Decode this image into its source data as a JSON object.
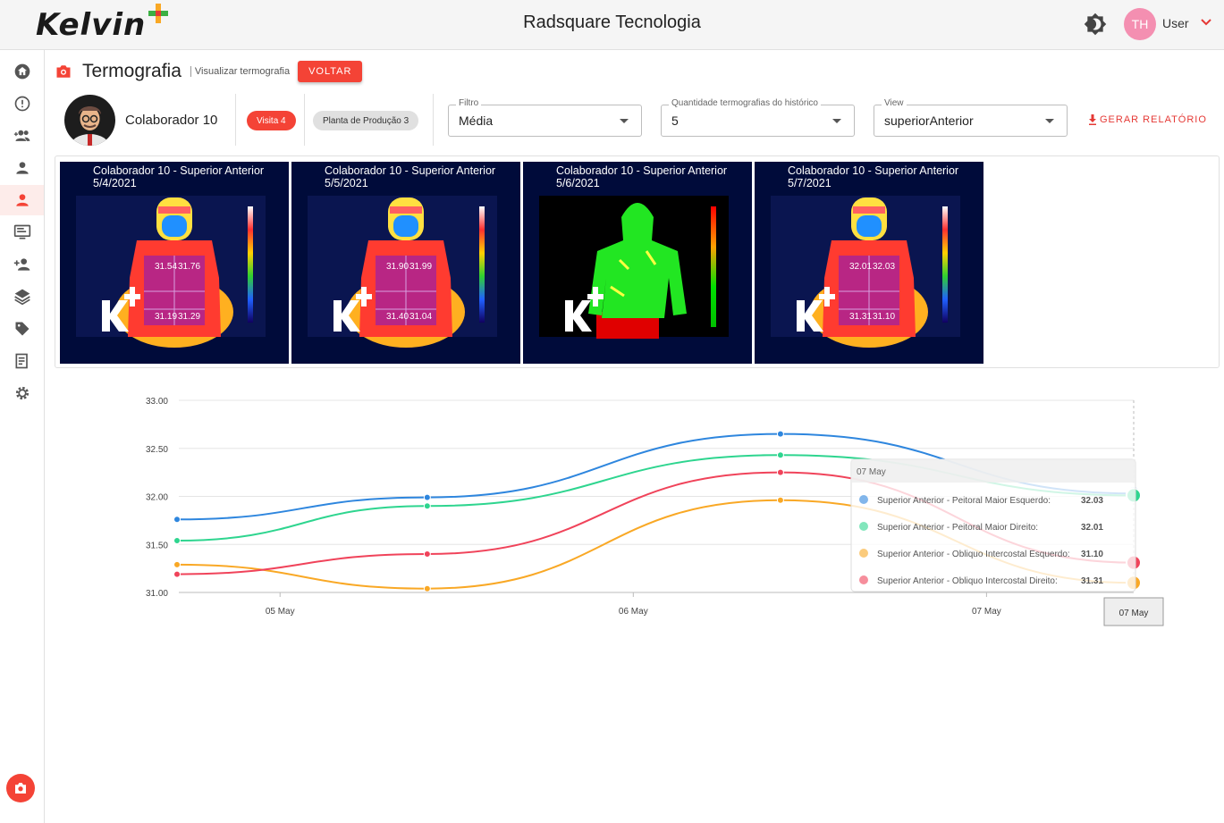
{
  "header": {
    "logo": "Kelvin+",
    "app_title": "Radsquare Tecnologia",
    "avatar_initials": "TH",
    "user_name": "User"
  },
  "sidebar": {
    "items": [
      {
        "icon": "home-icon"
      },
      {
        "icon": "alert-icon"
      },
      {
        "icon": "group-add-icon"
      },
      {
        "icon": "person-icon"
      },
      {
        "icon": "person-icon",
        "active": true
      },
      {
        "icon": "monitor-icon"
      },
      {
        "icon": "person-add-icon"
      },
      {
        "icon": "layers-icon"
      },
      {
        "icon": "tag-icon"
      },
      {
        "icon": "notes-icon"
      },
      {
        "icon": "settings-icon"
      }
    ],
    "fab_icon": "camera-icon"
  },
  "page": {
    "title": "Termografia",
    "subtitle": "Visualizar termografia",
    "back_label": "VOLTAR"
  },
  "filters": {
    "worker_name": "Colaborador 10",
    "visit_chip": "Visita 4",
    "plant_chip": "Planta de Produção 3",
    "filter_label": "Filtro",
    "filter_value": "Média",
    "history_label": "Quantidade termografias do histórico",
    "history_value": "5",
    "view_label": "View",
    "view_value": "superiorAnterior",
    "report_label": "GERAR RELATÓRIO"
  },
  "thermographies": [
    {
      "title": "Colaborador 10 - Superior Anterior",
      "date": "5/4/2021",
      "readings": [
        "31.54",
        "31.76",
        "31.19",
        "31.29"
      ]
    },
    {
      "title": "Colaborador 10 - Superior Anterior",
      "date": "5/5/2021",
      "readings": [
        "31.90",
        "31.99",
        "31.40",
        "31.04"
      ]
    },
    {
      "title": "Colaborador 10 - Superior Anterior",
      "date": "5/6/2021",
      "readings": []
    },
    {
      "title": "Colaborador 10 - Superior Anterior",
      "date": "5/7/2021",
      "readings": [
        "32.01",
        "32.03",
        "31.31",
        "31.10"
      ]
    }
  ],
  "chart_data": {
    "type": "line",
    "x": [
      "2021-05-04 17:00",
      "2021-05-05 10:00",
      "2021-05-06 10:00",
      "2021-05-07 10:00"
    ],
    "x_ticks": [
      "05 May",
      "06 May",
      "07 May"
    ],
    "y_ticks": [
      "33.00",
      "32.50",
      "32.00",
      "31.50",
      "31.00"
    ],
    "ylim": [
      31.0,
      33.0
    ],
    "grid": true,
    "series": [
      {
        "name": "Superior Anterior - Peitoral Maior Esquerdo",
        "color": "#2e86de",
        "values": [
          31.76,
          31.99,
          32.65,
          32.03
        ]
      },
      {
        "name": "Superior Anterior - Peitoral Maior Direito",
        "color": "#2ed58f",
        "values": [
          31.54,
          31.9,
          32.43,
          32.01
        ]
      },
      {
        "name": "Superior Anterior - Obliquo Intercostal Esquerdo",
        "color": "#f9a825",
        "values": [
          31.29,
          31.04,
          31.96,
          31.1
        ]
      },
      {
        "name": "Superior Anterior - Obliquo Intercostal Direito",
        "color": "#f0435a",
        "values": [
          31.19,
          31.4,
          32.25,
          31.31
        ]
      }
    ],
    "tooltip": {
      "title": "07 May",
      "rows": [
        {
          "label": "Superior Anterior - Peitoral Maior Esquerdo:",
          "value": "32.03",
          "color": "#2e86de"
        },
        {
          "label": "Superior Anterior - Peitoral Maior Direito:",
          "value": "32.01",
          "color": "#2ed58f"
        },
        {
          "label": "Superior Anterior - Obliquo Intercostal Esquerdo:",
          "value": "31.10",
          "color": "#f9a825"
        },
        {
          "label": "Superior Anterior - Obliquo Intercostal Direito:",
          "value": "31.31",
          "color": "#f0435a"
        }
      ]
    },
    "crosshair_label": "07 May"
  }
}
